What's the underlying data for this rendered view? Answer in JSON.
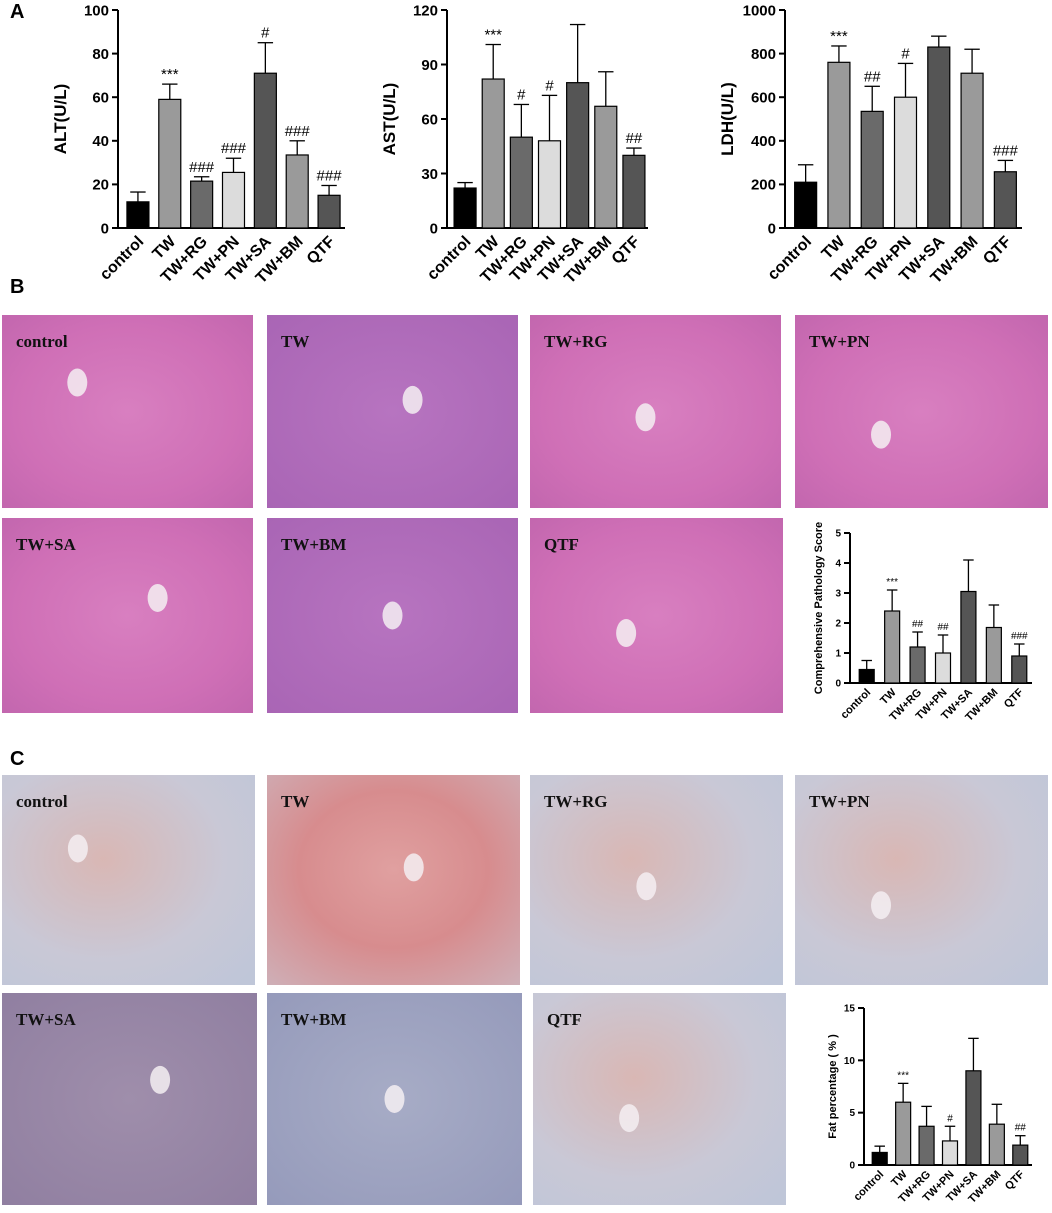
{
  "panel_labels": [
    "A",
    "B",
    "C"
  ],
  "histology_he": [
    "control",
    "TW",
    "TW+RG",
    "TW+PN",
    "TW+SA",
    "TW+BM",
    "QTF"
  ],
  "histology_oil_red": [
    "control",
    "TW",
    "TW+RG",
    "TW+PN",
    "TW+SA",
    "TW+BM",
    "QTF"
  ],
  "chart_data": [
    {
      "type": "bar",
      "ylabel": "ALT(U/L)",
      "categories": [
        "control",
        "TW",
        "TW+RG",
        "TW+PN",
        "TW+SA",
        "TW+BM",
        "QTF"
      ],
      "values": [
        12,
        59,
        21.5,
        25.5,
        71,
        33.5,
        15
      ],
      "errors": [
        4.5,
        7,
        2,
        6.5,
        14,
        6.5,
        4.5
      ],
      "annotations": [
        null,
        "***",
        "###",
        "###",
        "#",
        "###",
        "###"
      ],
      "colors": [
        "#000000",
        "#9a9a9a",
        "#6a6a6a",
        "#dcdcdc",
        "#555555",
        "#9a9a9a",
        "#555555"
      ],
      "ylim": [
        0,
        100
      ],
      "yticks": [
        0,
        20,
        40,
        60,
        80,
        100
      ]
    },
    {
      "type": "bar",
      "ylabel": "AST(U/L)",
      "categories": [
        "control",
        "TW",
        "TW+RG",
        "TW+PN",
        "TW+SA",
        "TW+BM",
        "QTF"
      ],
      "values": [
        22,
        82,
        50,
        48,
        80,
        67,
        40
      ],
      "errors": [
        3,
        19,
        18,
        25,
        32,
        19,
        4
      ],
      "annotations": [
        null,
        "***",
        "#",
        "#",
        null,
        null,
        "##"
      ],
      "colors": [
        "#000000",
        "#9a9a9a",
        "#6a6a6a",
        "#dcdcdc",
        "#555555",
        "#9a9a9a",
        "#555555"
      ],
      "ylim": [
        0,
        120
      ],
      "yticks": [
        0,
        30,
        60,
        90,
        120
      ]
    },
    {
      "type": "bar",
      "ylabel": "LDH(U/L)",
      "categories": [
        "control",
        "TW",
        "TW+RG",
        "TW+PN",
        "TW+SA",
        "TW+BM",
        "QTF"
      ],
      "values": [
        210,
        760,
        535,
        600,
        830,
        710,
        258
      ],
      "errors": [
        80,
        75,
        115,
        155,
        50,
        110,
        52
      ],
      "annotations": [
        null,
        "***",
        "##",
        "#",
        null,
        null,
        "###"
      ],
      "colors": [
        "#000000",
        "#9a9a9a",
        "#6a6a6a",
        "#dcdcdc",
        "#555555",
        "#9a9a9a",
        "#555555"
      ],
      "ylim": [
        0,
        1000
      ],
      "yticks": [
        0,
        200,
        400,
        600,
        800,
        1000
      ]
    },
    {
      "type": "bar",
      "ylabel": "Comprehensive Pathology Score",
      "categories": [
        "control",
        "TW",
        "TW+RG",
        "TW+PN",
        "TW+SA",
        "TW+BM",
        "QTF"
      ],
      "values": [
        0.45,
        2.4,
        1.2,
        1.0,
        3.05,
        1.85,
        0.9
      ],
      "errors": [
        0.3,
        0.7,
        0.5,
        0.6,
        1.05,
        0.75,
        0.4
      ],
      "annotations": [
        null,
        "***",
        "##",
        "##",
        null,
        null,
        "###"
      ],
      "colors": [
        "#000000",
        "#9a9a9a",
        "#6a6a6a",
        "#dcdcdc",
        "#555555",
        "#9a9a9a",
        "#555555"
      ],
      "ylim": [
        0,
        5
      ],
      "yticks": [
        0,
        1,
        2,
        3,
        4,
        5
      ]
    },
    {
      "type": "bar",
      "ylabel": "Fat percentage ( % )",
      "categories": [
        "control",
        "TW",
        "TW+RG",
        "TW+PN",
        "TW+SA",
        "TW+BM",
        "QTF"
      ],
      "values": [
        1.2,
        6.0,
        3.7,
        2.3,
        9.0,
        3.9,
        1.9
      ],
      "errors": [
        0.6,
        1.8,
        1.9,
        1.4,
        3.1,
        1.9,
        0.9
      ],
      "annotations": [
        null,
        "***",
        null,
        "#",
        null,
        null,
        "##"
      ],
      "colors": [
        "#000000",
        "#9a9a9a",
        "#6a6a6a",
        "#dcdcdc",
        "#555555",
        "#9a9a9a",
        "#555555"
      ],
      "ylim": [
        0,
        15
      ],
      "yticks": [
        0,
        5,
        10,
        15
      ]
    }
  ]
}
